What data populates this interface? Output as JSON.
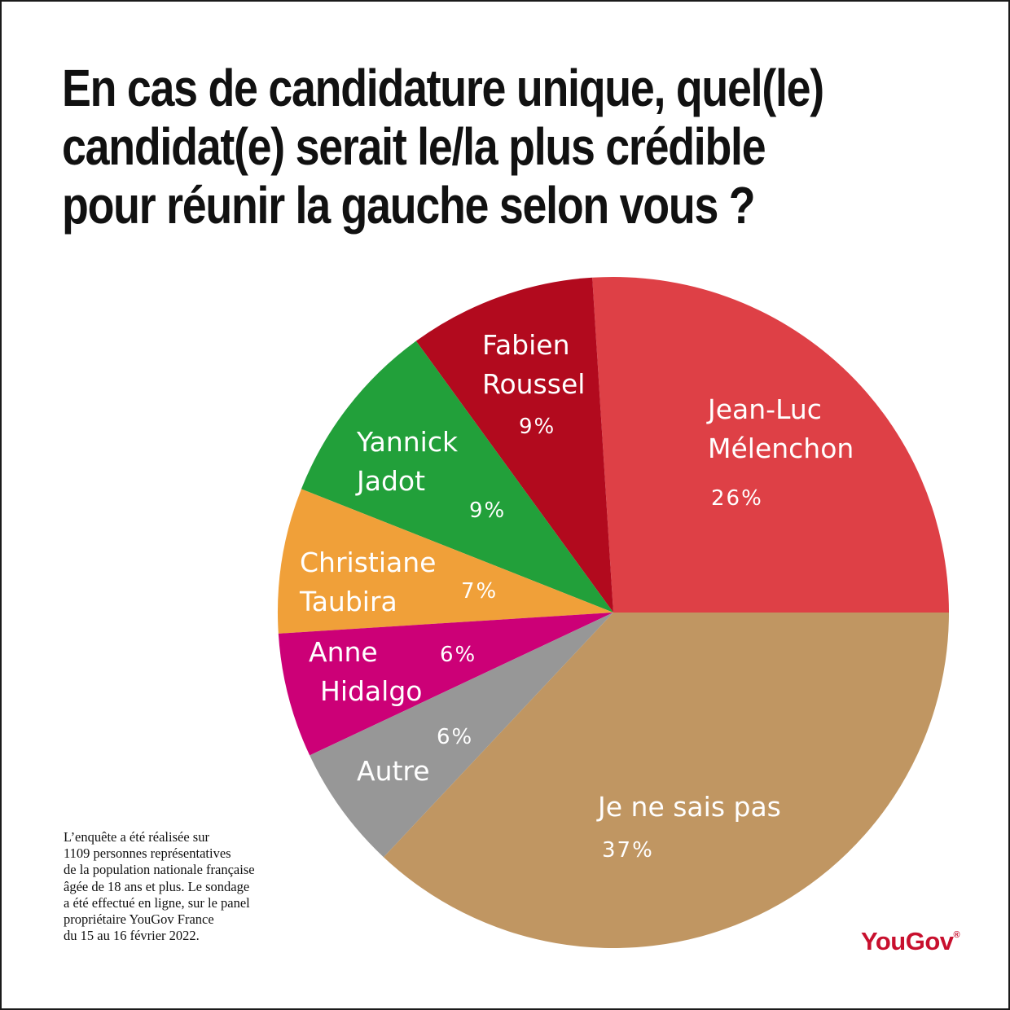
{
  "title_lines": [
    "En cas de candidature unique, quel(le)",
    "candidat(e) serait le/la plus crédible",
    "pour réunir la gauche selon vous ?"
  ],
  "chart_data": {
    "type": "pie",
    "title": "En cas de candidature unique, quel(le) candidat(e) serait le/la plus crédible pour réunir la gauche selon vous ?",
    "start_angle_deg": 0,
    "direction": "counterclockwise",
    "slices": [
      {
        "label_lines": [
          "Jean-Luc",
          "Mélenchon"
        ],
        "value": 26,
        "value_label": "26%",
        "color": "#de4046"
      },
      {
        "label_lines": [
          "Fabien",
          "Roussel"
        ],
        "value": 9,
        "value_label": "9%",
        "color": "#b20a1e"
      },
      {
        "label_lines": [
          "Yannick",
          "Jadot"
        ],
        "value": 9,
        "value_label": "9%",
        "color": "#22a03a"
      },
      {
        "label_lines": [
          "Christiane",
          "Taubira"
        ],
        "value": 7,
        "value_label": "7%",
        "color": "#f0a039"
      },
      {
        "label_lines": [
          "Anne",
          "Hidalgo"
        ],
        "value": 6,
        "value_label": "6%",
        "color": "#cc0077"
      },
      {
        "label_lines": [
          "Autre"
        ],
        "value": 6,
        "value_label": "6%",
        "color": "#979797"
      },
      {
        "label_lines": [
          "Je ne sais pas"
        ],
        "value": 37,
        "value_label": "37%",
        "color": "#c09662"
      }
    ]
  },
  "footnote_lines": [
    "L’enquête a été réalisée sur",
    "1109 personnes représentatives",
    "de la population nationale française",
    "âgée de 18 ans et plus. Le sondage",
    "a été effectué en ligne, sur le panel",
    "propriétaire YouGov France",
    "du 15 au 16 février 2022."
  ],
  "logo": {
    "text": "YouGov",
    "mark": "®",
    "color": "#c8102e"
  }
}
